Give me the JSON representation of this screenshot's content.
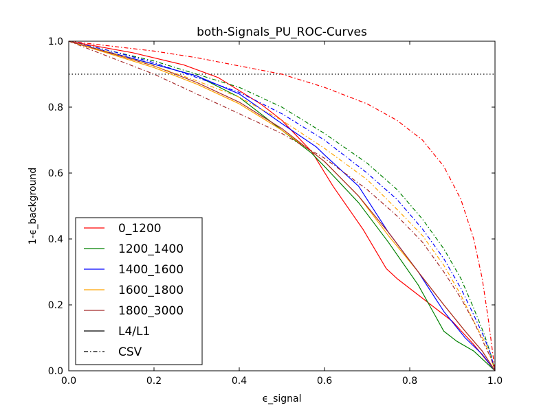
{
  "chart_data": {
    "type": "line",
    "title": "both-Signals_PU_ROC-Curves",
    "xlabel": "ϵ_signal",
    "ylabel": "1-ϵ_background",
    "xlim": [
      0.0,
      1.0
    ],
    "ylim": [
      0.0,
      1.0
    ],
    "xticks": [
      "0.0",
      "0.2",
      "0.4",
      "0.6",
      "0.8",
      "1.0"
    ],
    "yticks": [
      "0.0",
      "0.2",
      "0.4",
      "0.6",
      "0.8",
      "1.0"
    ],
    "reference_line": {
      "y": 0.9,
      "style": "dotted",
      "color": "#000000"
    },
    "legend_position": "lower-left",
    "legend": [
      {
        "label": "0_1200",
        "color": "#ff0000",
        "style": "solid"
      },
      {
        "label": "1200_1400",
        "color": "#008000",
        "style": "solid"
      },
      {
        "label": "1400_1600",
        "color": "#0000ff",
        "style": "solid"
      },
      {
        "label": "1600_1800",
        "color": "#ffa500",
        "style": "solid"
      },
      {
        "label": "1800_3000",
        "color": "#a52a2a",
        "style": "solid"
      },
      {
        "label": "L4/L1",
        "color": "#000000",
        "style": "solid"
      },
      {
        "label": "CSV",
        "color": "#000000",
        "style": "dashdot"
      }
    ],
    "series": [
      {
        "group": "0_1200",
        "method": "L4/L1",
        "color": "#ff0000",
        "style": "solid",
        "x": [
          0.0,
          0.15,
          0.27,
          0.35,
          0.45,
          0.5,
          0.57,
          0.62,
          0.69,
          0.745,
          0.77,
          0.85,
          0.9,
          0.95,
          1.0
        ],
        "y": [
          1.0,
          0.965,
          0.928,
          0.89,
          0.81,
          0.76,
          0.665,
          0.56,
          0.43,
          0.31,
          0.28,
          0.2,
          0.15,
          0.08,
          0.0
        ]
      },
      {
        "group": "1200_1400",
        "method": "L4/L1",
        "color": "#008000",
        "style": "solid",
        "x": [
          0.0,
          0.1,
          0.2,
          0.3,
          0.4,
          0.5,
          0.57,
          0.6,
          0.68,
          0.75,
          0.82,
          0.88,
          0.91,
          0.95,
          1.0
        ],
        "y": [
          1.0,
          0.965,
          0.93,
          0.895,
          0.83,
          0.73,
          0.66,
          0.62,
          0.51,
          0.39,
          0.26,
          0.12,
          0.09,
          0.06,
          0.0
        ]
      },
      {
        "group": "1400_1600",
        "method": "L4/L1",
        "color": "#0000ff",
        "style": "solid",
        "x": [
          0.0,
          0.1,
          0.2,
          0.3,
          0.4,
          0.5,
          0.58,
          0.6,
          0.68,
          0.75,
          0.82,
          0.88,
          0.93,
          0.97,
          1.0
        ],
        "y": [
          1.0,
          0.965,
          0.93,
          0.895,
          0.84,
          0.75,
          0.68,
          0.655,
          0.56,
          0.42,
          0.3,
          0.18,
          0.1,
          0.05,
          0.0
        ]
      },
      {
        "group": "1600_1800",
        "method": "L4/L1",
        "color": "#ffa500",
        "style": "solid",
        "x": [
          0.0,
          0.1,
          0.2,
          0.3,
          0.4,
          0.5,
          0.57,
          0.6,
          0.68,
          0.75,
          0.82,
          0.88,
          0.93,
          0.97,
          1.0
        ],
        "y": [
          1.0,
          0.96,
          0.92,
          0.87,
          0.81,
          0.73,
          0.665,
          0.635,
          0.53,
          0.41,
          0.3,
          0.2,
          0.12,
          0.06,
          0.0
        ]
      },
      {
        "group": "1800_3000",
        "method": "L4/L1",
        "color": "#a52a2a",
        "style": "solid",
        "x": [
          0.0,
          0.1,
          0.2,
          0.3,
          0.4,
          0.5,
          0.57,
          0.6,
          0.68,
          0.75,
          0.82,
          0.88,
          0.93,
          0.97,
          1.0
        ],
        "y": [
          1.0,
          0.963,
          0.925,
          0.875,
          0.815,
          0.735,
          0.665,
          0.635,
          0.53,
          0.42,
          0.3,
          0.2,
          0.12,
          0.06,
          0.0
        ]
      },
      {
        "group": "0_1200",
        "method": "CSV",
        "color": "#ff0000",
        "style": "dashdot",
        "x": [
          0.0,
          0.1,
          0.2,
          0.3,
          0.4,
          0.5,
          0.6,
          0.7,
          0.77,
          0.83,
          0.88,
          0.92,
          0.95,
          0.97,
          0.985,
          1.0
        ],
        "y": [
          1.0,
          0.985,
          0.97,
          0.95,
          0.925,
          0.9,
          0.86,
          0.81,
          0.76,
          0.7,
          0.62,
          0.52,
          0.4,
          0.28,
          0.15,
          0.0
        ]
      },
      {
        "group": "1200_1400",
        "method": "CSV",
        "color": "#008000",
        "style": "dashdot",
        "x": [
          0.0,
          0.1,
          0.2,
          0.3,
          0.4,
          0.5,
          0.6,
          0.7,
          0.77,
          0.83,
          0.88,
          0.92,
          0.95,
          0.975,
          0.99,
          1.0
        ],
        "y": [
          1.0,
          0.97,
          0.94,
          0.9,
          0.86,
          0.8,
          0.72,
          0.63,
          0.55,
          0.46,
          0.37,
          0.28,
          0.19,
          0.11,
          0.05,
          0.0
        ]
      },
      {
        "group": "1400_1600",
        "method": "CSV",
        "color": "#0000ff",
        "style": "dashdot",
        "x": [
          0.0,
          0.1,
          0.2,
          0.3,
          0.4,
          0.5,
          0.6,
          0.7,
          0.77,
          0.83,
          0.88,
          0.92,
          0.95,
          0.975,
          0.99,
          1.0
        ],
        "y": [
          1.0,
          0.97,
          0.935,
          0.89,
          0.845,
          0.78,
          0.7,
          0.6,
          0.52,
          0.43,
          0.34,
          0.25,
          0.17,
          0.1,
          0.05,
          0.0
        ]
      },
      {
        "group": "1600_1800",
        "method": "CSV",
        "color": "#ffa500",
        "style": "dashdot",
        "x": [
          0.0,
          0.1,
          0.2,
          0.3,
          0.4,
          0.5,
          0.6,
          0.7,
          0.77,
          0.83,
          0.88,
          0.92,
          0.95,
          0.975,
          0.99,
          1.0
        ],
        "y": [
          1.0,
          0.965,
          0.925,
          0.88,
          0.83,
          0.76,
          0.675,
          0.58,
          0.49,
          0.41,
          0.32,
          0.23,
          0.15,
          0.09,
          0.04,
          0.0
        ]
      },
      {
        "group": "1800_3000",
        "method": "CSV",
        "color": "#a52a2a",
        "style": "dashdot",
        "x": [
          0.0,
          0.1,
          0.2,
          0.3,
          0.4,
          0.5,
          0.6,
          0.7,
          0.77,
          0.83,
          0.88,
          0.92,
          0.95,
          0.975,
          0.99,
          1.0
        ],
        "y": [
          1.0,
          0.95,
          0.9,
          0.84,
          0.78,
          0.72,
          0.645,
          0.55,
          0.47,
          0.39,
          0.3,
          0.22,
          0.15,
          0.08,
          0.04,
          0.0
        ]
      }
    ]
  }
}
